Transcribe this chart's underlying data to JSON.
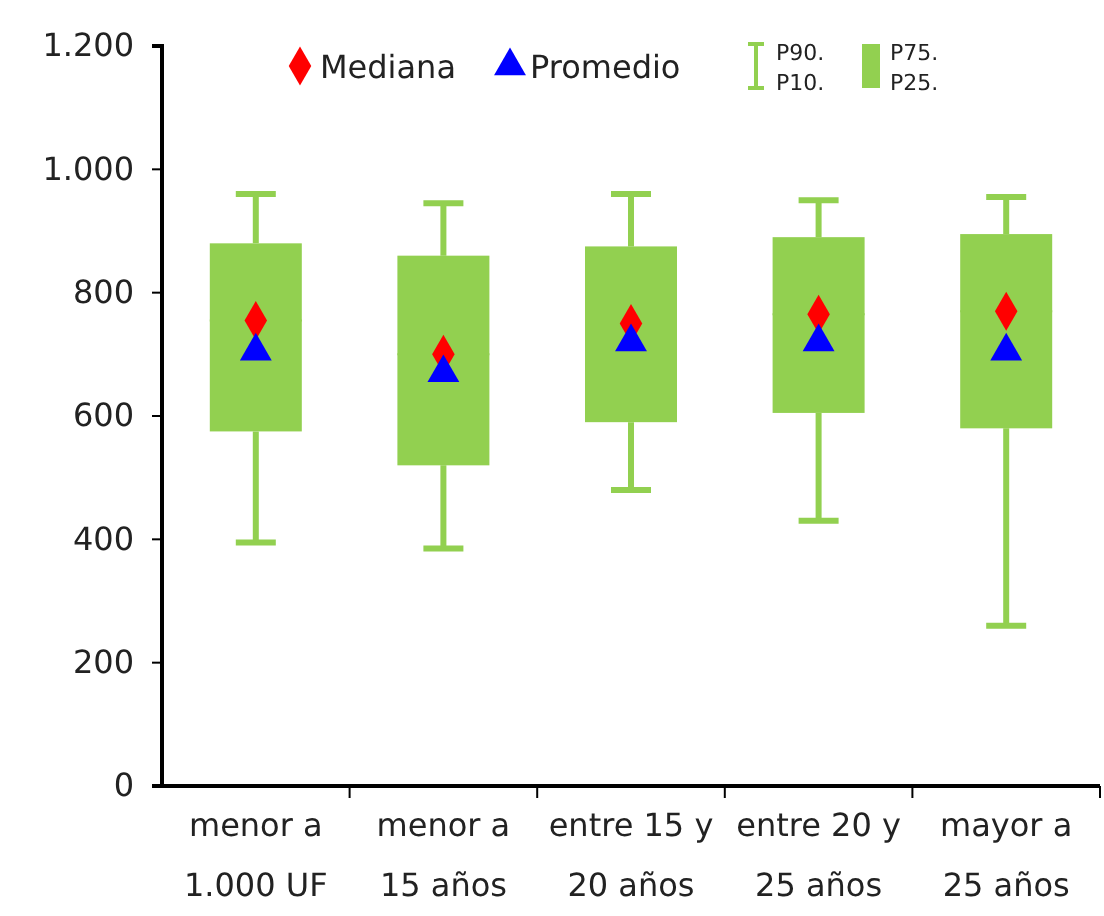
{
  "chart_data": {
    "type": "box",
    "categories": [
      "menor a\n1.000 UF",
      "menor a\n15 años",
      "entre 15 y\n20 años",
      "entre 20 y\n25 años",
      "mayor a\n25 años"
    ],
    "series": [
      {
        "name": "P75.\nP25.",
        "color": "#92d050",
        "boxes": [
          {
            "low": 395,
            "q1": 575,
            "median": 755,
            "q3": 880,
            "high": 960
          },
          {
            "low": 385,
            "q1": 520,
            "median": 700,
            "q3": 860,
            "high": 945
          },
          {
            "low": 480,
            "q1": 590,
            "median": 750,
            "q3": 875,
            "high": 960
          },
          {
            "low": 430,
            "q1": 605,
            "median": 765,
            "q3": 890,
            "high": 950
          },
          {
            "low": 260,
            "q1": 580,
            "median": 770,
            "q3": 895,
            "high": 955
          }
        ]
      },
      {
        "type": "scatter",
        "name": "Mediana",
        "color": "#ff0000",
        "marker": "diamond",
        "values": [
          755,
          700,
          750,
          765,
          770
        ]
      },
      {
        "type": "scatter",
        "name": "Promedio",
        "color": "#0000ff",
        "marker": "triangle",
        "values": [
          705,
          670,
          720,
          720,
          705
        ]
      }
    ],
    "annotations": [
      "P90.\nP10."
    ],
    "ylim": [
      0,
      1200
    ],
    "yticks": [
      {
        "value": 0,
        "label": "0"
      },
      {
        "value": 200,
        "label": "200"
      },
      {
        "value": 400,
        "label": "400"
      },
      {
        "value": 600,
        "label": "600"
      },
      {
        "value": 800,
        "label": "800"
      },
      {
        "value": 1000,
        "label": "1.000"
      },
      {
        "value": 1200,
        "label": "1.200"
      }
    ],
    "legend": "top"
  }
}
